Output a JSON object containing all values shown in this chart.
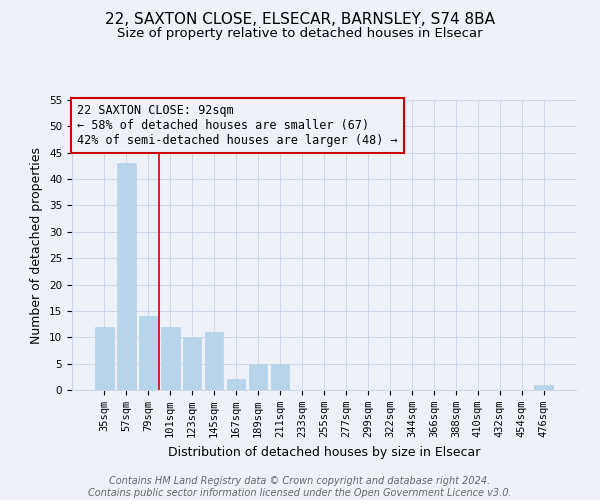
{
  "title": "22, SAXTON CLOSE, ELSECAR, BARNSLEY, S74 8BA",
  "subtitle": "Size of property relative to detached houses in Elsecar",
  "xlabel": "Distribution of detached houses by size in Elsecar",
  "ylabel": "Number of detached properties",
  "bar_labels": [
    "35sqm",
    "57sqm",
    "79sqm",
    "101sqm",
    "123sqm",
    "145sqm",
    "167sqm",
    "189sqm",
    "211sqm",
    "233sqm",
    "255sqm",
    "277sqm",
    "299sqm",
    "322sqm",
    "344sqm",
    "366sqm",
    "388sqm",
    "410sqm",
    "432sqm",
    "454sqm",
    "476sqm"
  ],
  "bar_values": [
    12,
    43,
    14,
    12,
    10,
    11,
    2,
    5,
    5,
    0,
    0,
    0,
    0,
    0,
    0,
    0,
    0,
    0,
    0,
    0,
    1
  ],
  "bar_color": "#b8d4ea",
  "bar_edge_color": "#b8d4ea",
  "grid_color": "#ccd8ea",
  "background_color": "#eef2f8",
  "vline_x": 2.5,
  "vline_color": "#cc0000",
  "annotation_text": "22 SAXTON CLOSE: 92sqm\n← 58% of detached houses are smaller (67)\n42% of semi-detached houses are larger (48) →",
  "annotation_box_color": "#cc0000",
  "ylim": [
    0,
    55
  ],
  "yticks": [
    0,
    5,
    10,
    15,
    20,
    25,
    30,
    35,
    40,
    45,
    50,
    55
  ],
  "footer_line1": "Contains HM Land Registry data © Crown copyright and database right 2024.",
  "footer_line2": "Contains public sector information licensed under the Open Government Licence v3.0.",
  "title_fontsize": 11,
  "subtitle_fontsize": 9.5,
  "axis_label_fontsize": 9,
  "tick_fontsize": 7.5,
  "annotation_fontsize": 8.5,
  "footer_fontsize": 7
}
